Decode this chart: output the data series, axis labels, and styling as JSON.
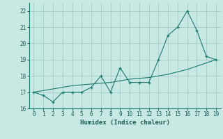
{
  "xlabel": "Humidex (Indice chaleur)",
  "x": [
    0,
    1,
    2,
    3,
    4,
    5,
    6,
    7,
    8,
    9,
    10,
    11,
    12,
    13,
    14,
    15,
    16,
    17,
    18,
    19
  ],
  "y_line1": [
    17.0,
    16.8,
    16.4,
    17.0,
    17.0,
    17.0,
    17.3,
    18.0,
    17.0,
    18.5,
    17.6,
    17.6,
    17.6,
    19.0,
    20.5,
    21.0,
    22.0,
    20.8,
    19.2,
    19.0
  ],
  "y_line2": [
    17.0,
    17.1,
    17.2,
    17.3,
    17.4,
    17.45,
    17.5,
    17.55,
    17.6,
    17.7,
    17.8,
    17.85,
    17.9,
    18.0,
    18.1,
    18.25,
    18.4,
    18.6,
    18.8,
    19.0
  ],
  "line_color": "#1a7a6e",
  "bg_color": "#c8e8e4",
  "grid_color": "#aacfcb",
  "text_color": "#1a5a52",
  "ylim": [
    16,
    22.5
  ],
  "xlim": [
    -0.5,
    19.5
  ],
  "yticks": [
    16,
    17,
    18,
    19,
    20,
    21,
    22
  ],
  "xticks": [
    0,
    1,
    2,
    3,
    4,
    5,
    6,
    7,
    8,
    9,
    10,
    11,
    12,
    13,
    14,
    15,
    16,
    17,
    18,
    19
  ]
}
